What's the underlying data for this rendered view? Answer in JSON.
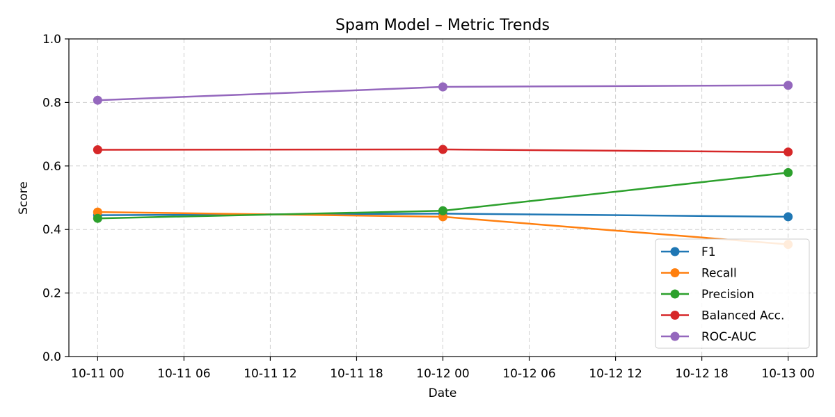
{
  "chart_data": {
    "type": "line",
    "title": "Spam Model – Metric Trends",
    "xlabel": "Date",
    "ylabel": "Score",
    "ylim": [
      0,
      1
    ],
    "xlim": [
      "2024-10-10T22:00",
      "2024-10-13T02:00"
    ],
    "x_ticks": [
      "10-11 00",
      "10-11 06",
      "10-11 12",
      "10-11 18",
      "10-12 00",
      "10-12 06",
      "10-12 12",
      "10-12 18",
      "10-13 00"
    ],
    "y_ticks": [
      "0.0",
      "0.2",
      "0.4",
      "0.6",
      "0.8",
      "1.0"
    ],
    "grid": true,
    "legend_position": "lower-right",
    "x": [
      "2024-10-11T00:00",
      "2024-10-12T00:00",
      "2024-10-13T00:00"
    ],
    "series": [
      {
        "name": "F1",
        "color": "#1f77b4",
        "values": [
          0.445,
          0.45,
          0.44
        ]
      },
      {
        "name": "Recall",
        "color": "#ff7f0e",
        "values": [
          0.455,
          0.44,
          0.353
        ]
      },
      {
        "name": "Precision",
        "color": "#2ca02c",
        "values": [
          0.435,
          0.459,
          0.579
        ]
      },
      {
        "name": "Balanced Acc.",
        "color": "#d62728",
        "values": [
          0.651,
          0.652,
          0.644
        ]
      },
      {
        "name": "ROC-AUC",
        "color": "#9467bd",
        "values": [
          0.807,
          0.849,
          0.854
        ]
      }
    ]
  }
}
